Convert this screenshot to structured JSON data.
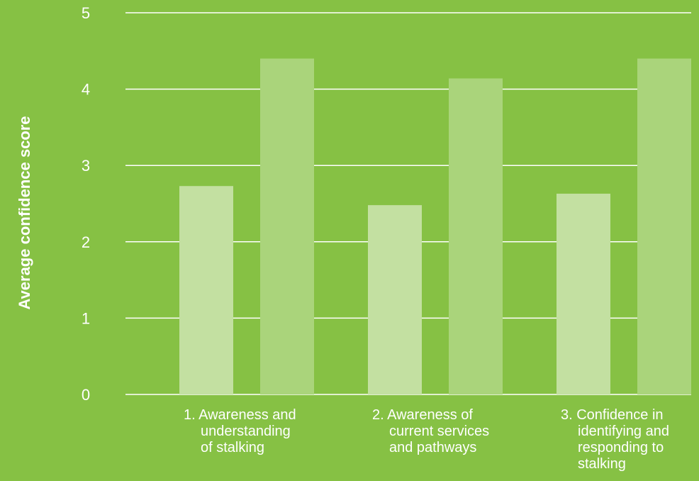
{
  "chart_data": {
    "type": "bar",
    "ylabel": "Average confidence score",
    "xlabel": "",
    "ylim": [
      0,
      5
    ],
    "yticks": [
      "0",
      "1",
      "2",
      "3",
      "4",
      "5"
    ],
    "grid": true,
    "categories": [
      [
        "1. Awareness and",
        "understanding",
        "of stalking"
      ],
      [
        "2. Awareness of",
        "current services",
        "and pathways"
      ],
      [
        "3. Confidence in",
        "identifying and",
        "responding to",
        "stalking"
      ]
    ],
    "series": [
      {
        "values": [
          2.73,
          2.48,
          2.63
        ],
        "color": "#c3e0a1"
      },
      {
        "values": [
          4.4,
          4.14,
          4.4
        ],
        "color": "#aad47b"
      }
    ]
  },
  "colors": {
    "background": "#86c144",
    "gridline": "#ffffff",
    "text": "#ffffff"
  }
}
